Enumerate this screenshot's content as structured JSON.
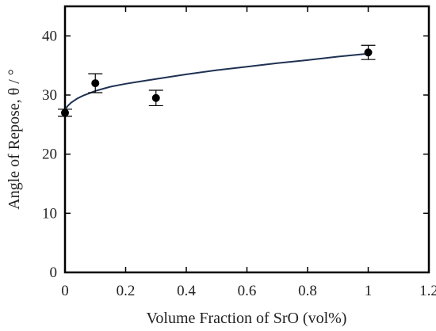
{
  "chart_data": {
    "type": "scatter",
    "xlabel": "Volume Fraction of SrO (vol%)",
    "ylabel": "Angle of Repose,  θ / °",
    "xlim": [
      0,
      1.2
    ],
    "ylim": [
      0,
      45
    ],
    "x_ticks": [
      0,
      0.2,
      0.4,
      0.6,
      0.8,
      1.0,
      1.2
    ],
    "x_tick_labels": [
      "0",
      "0.2",
      "0.4",
      "0.6",
      "0.8",
      "1",
      "1.2"
    ],
    "y_ticks": [
      0,
      10,
      20,
      30,
      40
    ],
    "y_tick_labels": [
      "0",
      "10",
      "20",
      "30",
      "40"
    ],
    "grid": false,
    "series": [
      {
        "x": [
          0,
          0.1,
          0.3,
          1.0
        ],
        "y": [
          27.0,
          32.0,
          29.5,
          37.2
        ],
        "err": [
          0.6,
          1.6,
          1.3,
          1.2
        ],
        "marker": "filled-circle",
        "color": "#000000"
      }
    ],
    "fit_curve": {
      "x": [
        0,
        0.005,
        0.01,
        0.02,
        0.04,
        0.06,
        0.08,
        0.1,
        0.15,
        0.2,
        0.25,
        0.3,
        0.4,
        0.5,
        0.6,
        0.7,
        0.8,
        0.9,
        1.0
      ],
      "y": [
        27.2,
        27.9,
        28.2,
        28.7,
        29.4,
        29.9,
        30.3,
        30.7,
        31.4,
        31.9,
        32.3,
        32.7,
        33.5,
        34.2,
        34.8,
        35.4,
        35.9,
        36.5,
        37.0
      ],
      "color": "#1f3152"
    }
  }
}
